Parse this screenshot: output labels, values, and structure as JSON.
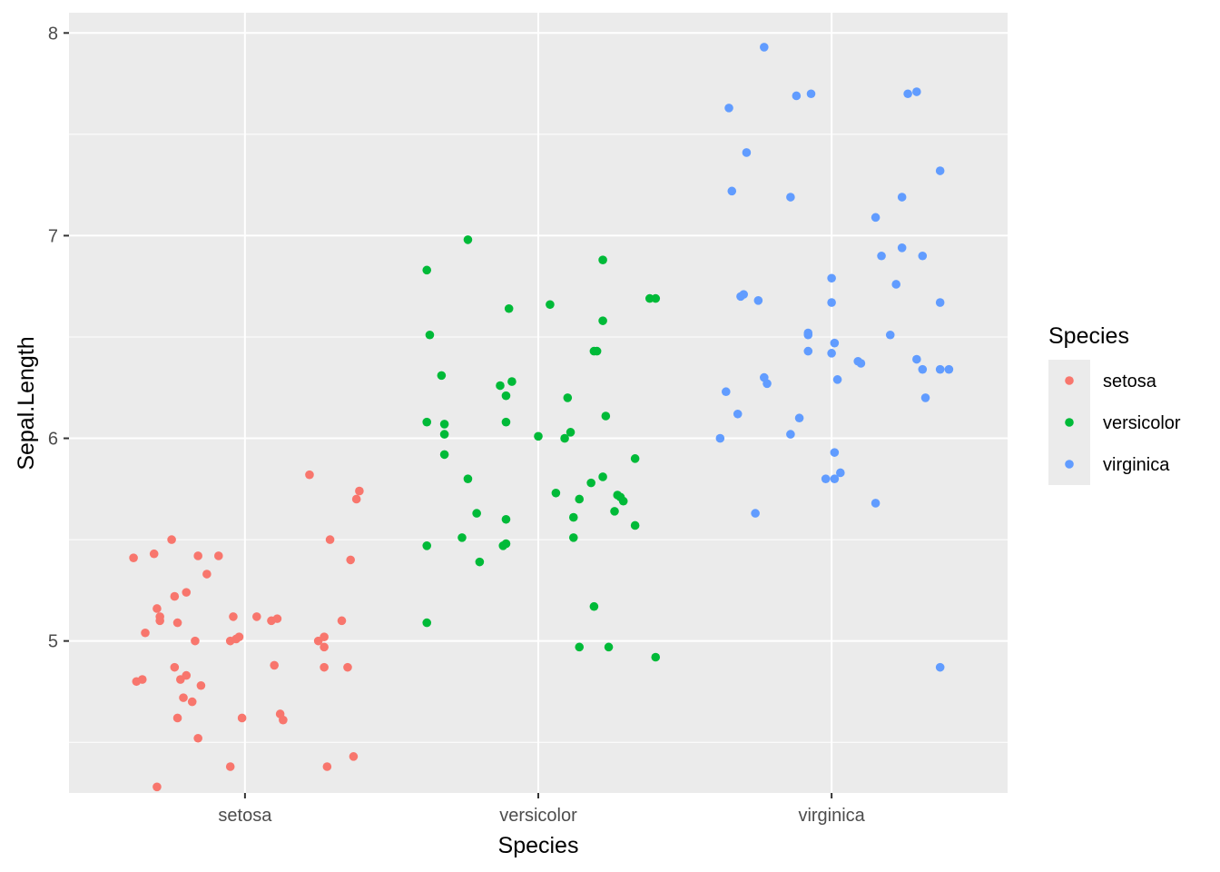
{
  "chart_data": {
    "type": "scatter",
    "title": "",
    "xlabel": "Species",
    "ylabel": "Sepal.Length",
    "categories": [
      "setosa",
      "versicolor",
      "virginica"
    ],
    "y_ticks": [
      "5",
      "6",
      "7",
      "8"
    ],
    "ylim": [
      4.25,
      8.1
    ],
    "grid": true,
    "jitter": true,
    "legend": {
      "title": "Species",
      "position": "right"
    },
    "series": [
      {
        "name": "setosa",
        "color": "#F8766D",
        "points": [
          [
            0.62,
            5.41
          ],
          [
            0.69,
            5.43
          ],
          [
            0.75,
            5.5
          ],
          [
            0.84,
            5.42
          ],
          [
            0.91,
            5.42
          ],
          [
            0.87,
            5.33
          ],
          [
            0.63,
            4.8
          ],
          [
            0.65,
            4.81
          ],
          [
            0.66,
            5.04
          ],
          [
            0.7,
            5.16
          ],
          [
            0.71,
            5.12
          ],
          [
            0.71,
            5.1
          ],
          [
            0.76,
            5.22
          ],
          [
            0.77,
            5.09
          ],
          [
            0.8,
            5.24
          ],
          [
            0.83,
            5.0
          ],
          [
            0.76,
            4.87
          ],
          [
            0.78,
            4.81
          ],
          [
            0.8,
            4.83
          ],
          [
            0.85,
            4.78
          ],
          [
            0.79,
            4.72
          ],
          [
            0.82,
            4.7
          ],
          [
            0.77,
            4.62
          ],
          [
            0.84,
            4.52
          ],
          [
            0.7,
            4.28
          ],
          [
            0.96,
            5.12
          ],
          [
            0.95,
            5.0
          ],
          [
            0.97,
            5.01
          ],
          [
            0.98,
            5.02
          ],
          [
            0.99,
            4.62
          ],
          [
            0.95,
            4.38
          ],
          [
            1.04,
            5.12
          ],
          [
            1.09,
            5.1
          ],
          [
            1.11,
            5.11
          ],
          [
            1.1,
            4.88
          ],
          [
            1.12,
            4.64
          ],
          [
            1.13,
            4.61
          ],
          [
            1.22,
            5.82
          ],
          [
            1.25,
            5.0
          ],
          [
            1.27,
            5.02
          ],
          [
            1.27,
            4.97
          ],
          [
            1.27,
            4.87
          ],
          [
            1.28,
            4.38
          ],
          [
            1.29,
            5.5
          ],
          [
            1.33,
            5.1
          ],
          [
            1.35,
            4.87
          ],
          [
            1.36,
            5.4
          ],
          [
            1.38,
            5.7
          ],
          [
            1.39,
            5.74
          ],
          [
            1.37,
            4.43
          ]
        ]
      },
      {
        "name": "versicolor",
        "color": "#00BA38",
        "points": [
          [
            1.62,
            6.83
          ],
          [
            1.63,
            6.51
          ],
          [
            1.62,
            6.08
          ],
          [
            1.62,
            5.47
          ],
          [
            1.62,
            5.09
          ],
          [
            1.67,
            6.31
          ],
          [
            1.68,
            6.07
          ],
          [
            1.68,
            6.02
          ],
          [
            1.68,
            5.92
          ],
          [
            1.76,
            6.98
          ],
          [
            1.74,
            5.51
          ],
          [
            1.76,
            5.8
          ],
          [
            1.79,
            5.63
          ],
          [
            1.8,
            5.39
          ],
          [
            1.87,
            6.26
          ],
          [
            1.89,
            6.21
          ],
          [
            1.9,
            6.64
          ],
          [
            1.91,
            6.28
          ],
          [
            1.89,
            6.08
          ],
          [
            1.89,
            5.6
          ],
          [
            1.88,
            5.47
          ],
          [
            1.89,
            5.48
          ],
          [
            2.0,
            6.01
          ],
          [
            2.04,
            6.66
          ],
          [
            2.06,
            5.73
          ],
          [
            2.09,
            6.0
          ],
          [
            2.1,
            6.2
          ],
          [
            2.11,
            6.03
          ],
          [
            2.12,
            5.51
          ],
          [
            2.12,
            5.61
          ],
          [
            2.14,
            5.7
          ],
          [
            2.14,
            4.97
          ],
          [
            2.18,
            5.78
          ],
          [
            2.19,
            6.43
          ],
          [
            2.2,
            6.43
          ],
          [
            2.19,
            5.17
          ],
          [
            2.22,
            6.88
          ],
          [
            2.22,
            6.58
          ],
          [
            2.23,
            6.11
          ],
          [
            2.22,
            5.81
          ],
          [
            2.24,
            4.97
          ],
          [
            2.27,
            5.72
          ],
          [
            2.28,
            5.71
          ],
          [
            2.29,
            5.69
          ],
          [
            2.26,
            5.64
          ],
          [
            2.33,
            5.9
          ],
          [
            2.33,
            5.57
          ],
          [
            2.38,
            6.69
          ],
          [
            2.4,
            6.69
          ],
          [
            2.4,
            4.92
          ]
        ]
      },
      {
        "name": "virginica",
        "color": "#619CFF",
        "points": [
          [
            2.62,
            6.0
          ],
          [
            2.64,
            6.23
          ],
          [
            2.65,
            7.63
          ],
          [
            2.66,
            7.22
          ],
          [
            2.68,
            6.12
          ],
          [
            2.69,
            6.7
          ],
          [
            2.7,
            6.71
          ],
          [
            2.71,
            7.41
          ],
          [
            2.75,
            6.68
          ],
          [
            2.74,
            5.63
          ],
          [
            2.77,
            7.93
          ],
          [
            2.77,
            6.3
          ],
          [
            2.78,
            6.27
          ],
          [
            2.86,
            7.19
          ],
          [
            2.86,
            6.02
          ],
          [
            2.88,
            7.69
          ],
          [
            2.89,
            6.1
          ],
          [
            2.93,
            7.7
          ],
          [
            2.92,
            6.43
          ],
          [
            2.92,
            6.51
          ],
          [
            2.92,
            6.52
          ],
          [
            2.98,
            5.8
          ],
          [
            3.0,
            6.79
          ],
          [
            3.0,
            6.67
          ],
          [
            3.0,
            6.42
          ],
          [
            3.01,
            6.47
          ],
          [
            3.01,
            5.93
          ],
          [
            3.02,
            6.29
          ],
          [
            3.01,
            5.8
          ],
          [
            3.03,
            5.83
          ],
          [
            3.09,
            6.38
          ],
          [
            3.1,
            6.37
          ],
          [
            3.15,
            7.09
          ],
          [
            3.17,
            6.9
          ],
          [
            3.15,
            5.68
          ],
          [
            3.2,
            6.51
          ],
          [
            3.22,
            6.76
          ],
          [
            3.24,
            7.19
          ],
          [
            3.24,
            6.94
          ],
          [
            3.26,
            7.7
          ],
          [
            3.29,
            7.71
          ],
          [
            3.29,
            6.39
          ],
          [
            3.31,
            6.9
          ],
          [
            3.31,
            6.34
          ],
          [
            3.32,
            6.2
          ],
          [
            3.37,
            7.32
          ],
          [
            3.37,
            6.67
          ],
          [
            3.37,
            6.34
          ],
          [
            3.4,
            6.34
          ],
          [
            3.37,
            4.87
          ]
        ]
      }
    ]
  }
}
